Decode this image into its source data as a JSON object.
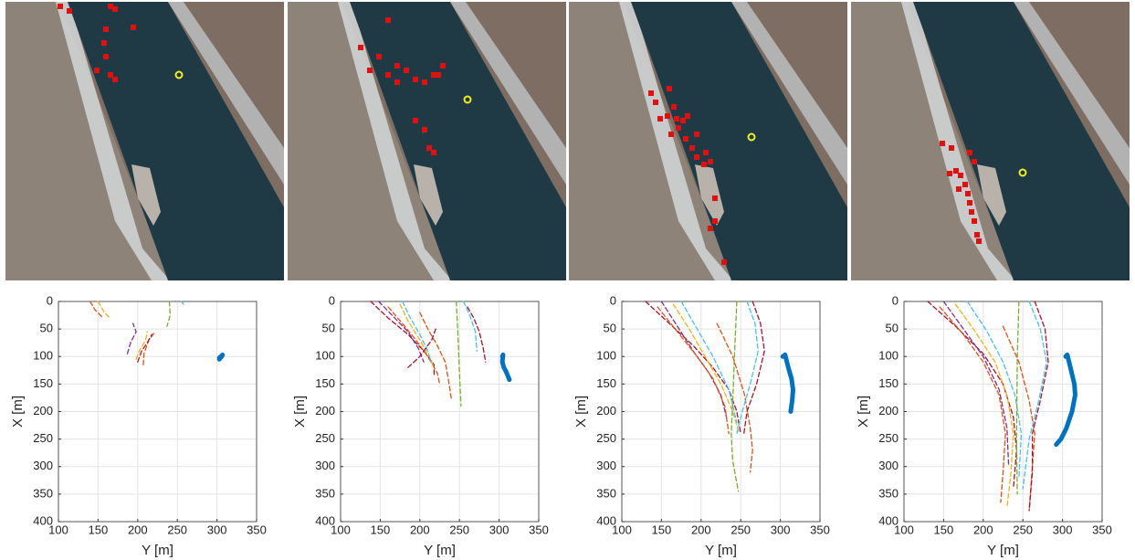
{
  "chart_data": [
    {
      "type": "line",
      "xlabel": "Y [m]",
      "ylabel": "X [m]",
      "xlim": [
        100,
        350
      ],
      "ylim": [
        0,
        400
      ],
      "y_inverted": true,
      "grid": true,
      "xticks": [
        100,
        150,
        200,
        250,
        300,
        350
      ],
      "yticks": [
        0,
        50,
        100,
        150,
        200,
        250,
        300,
        350,
        400
      ],
      "series": [
        {
          "color": "#d95319",
          "style": "dashed",
          "x": [
            140,
            146,
            155
          ],
          "values": [
            0,
            15,
            28
          ]
        },
        {
          "color": "#edb120",
          "style": "dashed",
          "x": [
            150,
            158,
            165
          ],
          "values": [
            0,
            20,
            30
          ]
        },
        {
          "color": "#7e2f8e",
          "style": "dashed",
          "x": [
            187,
            191,
            198,
            194
          ],
          "values": [
            95,
            75,
            55,
            40
          ]
        },
        {
          "color": "#edb120",
          "style": "dashed",
          "x": [
            198,
            202,
            210,
            212
          ],
          "values": [
            105,
            90,
            70,
            55
          ]
        },
        {
          "color": "#d95319",
          "style": "dashed",
          "x": [
            207,
            208,
            214,
            222
          ],
          "values": [
            115,
            95,
            70,
            55
          ]
        },
        {
          "color": "#a2142f",
          "style": "dashed",
          "x": [
            200,
            205,
            212,
            218
          ],
          "values": [
            110,
            90,
            75,
            60
          ]
        },
        {
          "color": "#77ac30",
          "style": "dashed",
          "x": [
            240,
            241,
            237
          ],
          "values": [
            0,
            25,
            45
          ]
        },
        {
          "color": "#4dbeee",
          "style": "dashed",
          "x": [
            255,
            258
          ],
          "values": [
            0,
            5
          ]
        },
        {
          "color": "#0072bd",
          "style": "track",
          "x": [
            303,
            306,
            307,
            305,
            303
          ],
          "values": [
            105,
            100,
            97,
            100,
            102
          ]
        }
      ]
    },
    {
      "type": "line",
      "xlabel": "Y [m]",
      "ylabel": "X [m]",
      "xlim": [
        100,
        350
      ],
      "ylim": [
        0,
        400
      ],
      "y_inverted": true,
      "grid": true,
      "xticks": [
        100,
        150,
        200,
        250,
        300,
        350
      ],
      "yticks": [
        0,
        50,
        100,
        150,
        200,
        250,
        300,
        350,
        400
      ],
      "series": [
        {
          "color": "#a2142f",
          "style": "dashed",
          "x": [
            138,
            160,
            185,
            205,
            218,
            218
          ],
          "values": [
            0,
            30,
            60,
            90,
            115,
            135
          ]
        },
        {
          "color": "#7e2f8e",
          "style": "dashed",
          "x": [
            148,
            165,
            185,
            198,
            205
          ],
          "values": [
            0,
            25,
            55,
            85,
            110
          ]
        },
        {
          "color": "#d95319",
          "style": "dashed",
          "x": [
            160,
            178,
            195,
            210,
            222,
            225
          ],
          "values": [
            10,
            40,
            70,
            100,
            130,
            150
          ]
        },
        {
          "color": "#edb120",
          "style": "dashed",
          "x": [
            175,
            185,
            200,
            212,
            218
          ],
          "values": [
            5,
            35,
            70,
            100,
            120
          ]
        },
        {
          "color": "#4dbeee",
          "style": "dashed",
          "x": [
            178,
            188,
            200,
            210,
            214
          ],
          "values": [
            0,
            30,
            60,
            90,
            110
          ]
        },
        {
          "color": "#d95319",
          "style": "dashed",
          "x": [
            200,
            210,
            222,
            232,
            237,
            240
          ],
          "values": [
            20,
            50,
            80,
            110,
            150,
            180
          ]
        },
        {
          "color": "#a2142f",
          "style": "dashed",
          "x": [
            260,
            268,
            275,
            280,
            283
          ],
          "values": [
            10,
            30,
            55,
            85,
            110
          ]
        },
        {
          "color": "#4dbeee",
          "style": "dashed",
          "x": [
            255,
            263,
            270,
            272
          ],
          "values": [
            0,
            25,
            55,
            90
          ]
        },
        {
          "color": "#77ac30",
          "style": "dashed",
          "x": [
            246,
            248,
            250,
            252
          ],
          "values": [
            0,
            60,
            130,
            190
          ]
        },
        {
          "color": "#a2142f",
          "style": "dashed",
          "x": [
            185,
            200,
            215,
            220
          ],
          "values": [
            120,
            100,
            70,
            50
          ]
        },
        {
          "color": "#0072bd",
          "style": "track",
          "x": [
            304,
            305,
            304,
            306,
            309,
            311,
            313
          ],
          "values": [
            100,
            97,
            110,
            120,
            128,
            135,
            142
          ]
        }
      ]
    },
    {
      "type": "line",
      "xlabel": "Y [m]",
      "ylabel": "X [m]",
      "xlim": [
        100,
        350
      ],
      "ylim": [
        0,
        400
      ],
      "y_inverted": true,
      "grid": true,
      "xticks": [
        100,
        150,
        200,
        250,
        300,
        350
      ],
      "yticks": [
        0,
        50,
        100,
        150,
        200,
        250,
        300,
        350,
        400
      ],
      "series": [
        {
          "color": "#a2142f",
          "style": "dashed",
          "x": [
            130,
            160,
            190,
            215,
            235,
            245,
            250
          ],
          "values": [
            0,
            40,
            80,
            120,
            160,
            200,
            240
          ]
        },
        {
          "color": "#7e2f8e",
          "style": "dashed",
          "x": [
            150,
            170,
            190,
            210,
            225,
            232
          ],
          "values": [
            0,
            45,
            90,
            130,
            170,
            210
          ]
        },
        {
          "color": "#d95319",
          "style": "dashed",
          "x": [
            145,
            170,
            195,
            215,
            230,
            235
          ],
          "values": [
            10,
            55,
            100,
            140,
            190,
            240
          ]
        },
        {
          "color": "#edb120",
          "style": "dashed",
          "x": [
            165,
            185,
            205,
            225,
            240,
            248
          ],
          "values": [
            5,
            50,
            100,
            150,
            200,
            240
          ]
        },
        {
          "color": "#4dbeee",
          "style": "dashed",
          "x": [
            175,
            195,
            215,
            235,
            245
          ],
          "values": [
            0,
            50,
            100,
            160,
            220
          ]
        },
        {
          "color": "#77ac30",
          "style": "dashed",
          "x": [
            245,
            242,
            240,
            238,
            240,
            247
          ],
          "values": [
            0,
            100,
            180,
            240,
            290,
            345
          ]
        },
        {
          "color": "#d95319",
          "style": "dashed",
          "x": [
            220,
            240,
            255,
            262,
            265,
            262
          ],
          "values": [
            40,
            100,
            170,
            230,
            270,
            310
          ]
        },
        {
          "color": "#a2142f",
          "style": "dashed",
          "x": [
            265,
            275,
            280,
            270,
            258,
            254
          ],
          "values": [
            0,
            40,
            90,
            150,
            200,
            240
          ]
        },
        {
          "color": "#4dbeee",
          "style": "dashed",
          "x": [
            258,
            268,
            272,
            262,
            252,
            245
          ],
          "values": [
            0,
            40,
            90,
            150,
            200,
            240
          ]
        },
        {
          "color": "#0072bd",
          "style": "track",
          "x": [
            303,
            306,
            310,
            314,
            316,
            315,
            313
          ],
          "values": [
            100,
            97,
            120,
            140,
            160,
            180,
            200
          ]
        }
      ]
    },
    {
      "type": "line",
      "xlabel": "Y [m]",
      "ylabel": "X [m]",
      "xlim": [
        100,
        350
      ],
      "ylim": [
        0,
        400
      ],
      "y_inverted": true,
      "grid": true,
      "xticks": [
        100,
        150,
        200,
        250,
        300,
        350
      ],
      "yticks": [
        0,
        50,
        100,
        150,
        200,
        250,
        300,
        350,
        400
      ],
      "series": [
        {
          "color": "#a2142f",
          "style": "dashed",
          "x": [
            130,
            165,
            200,
            225,
            238,
            242,
            238
          ],
          "values": [
            0,
            45,
            95,
            150,
            210,
            270,
            340
          ]
        },
        {
          "color": "#7e2f8e",
          "style": "dashed",
          "x": [
            150,
            175,
            200,
            220,
            230,
            232
          ],
          "values": [
            0,
            50,
            100,
            160,
            230,
            300
          ]
        },
        {
          "color": "#d95319",
          "style": "dashed",
          "x": [
            145,
            175,
            200,
            220,
            228,
            225,
            222
          ],
          "values": [
            10,
            60,
            110,
            170,
            240,
            310,
            365
          ]
        },
        {
          "color": "#edb120",
          "style": "dashed",
          "x": [
            165,
            190,
            215,
            230,
            238,
            235,
            230
          ],
          "values": [
            5,
            55,
            110,
            170,
            240,
            310,
            375
          ]
        },
        {
          "color": "#4dbeee",
          "style": "dashed",
          "x": [
            180,
            205,
            225,
            240,
            248,
            245
          ],
          "values": [
            0,
            55,
            110,
            170,
            240,
            320
          ]
        },
        {
          "color": "#77ac30",
          "style": "dashed",
          "x": [
            245,
            243,
            242,
            243
          ],
          "values": [
            0,
            100,
            250,
            350
          ]
        },
        {
          "color": "#d95319",
          "style": "dashed",
          "x": [
            225,
            245,
            258,
            265,
            262,
            258
          ],
          "values": [
            45,
            110,
            180,
            240,
            300,
            380
          ]
        },
        {
          "color": "#a2142f",
          "style": "dashed",
          "x": [
            265,
            278,
            282,
            272,
            262,
            262,
            258
          ],
          "values": [
            0,
            50,
            110,
            180,
            240,
            310,
            380
          ]
        },
        {
          "color": "#4dbeee",
          "style": "dashed",
          "x": [
            258,
            272,
            280,
            270,
            258,
            250
          ],
          "values": [
            0,
            50,
            110,
            180,
            250,
            340
          ]
        },
        {
          "color": "#0072bd",
          "style": "track",
          "x": [
            304,
            306,
            310,
            315,
            316,
            312,
            305,
            298,
            292
          ],
          "values": [
            100,
            97,
            120,
            150,
            170,
            200,
            230,
            250,
            260
          ]
        }
      ]
    }
  ]
}
